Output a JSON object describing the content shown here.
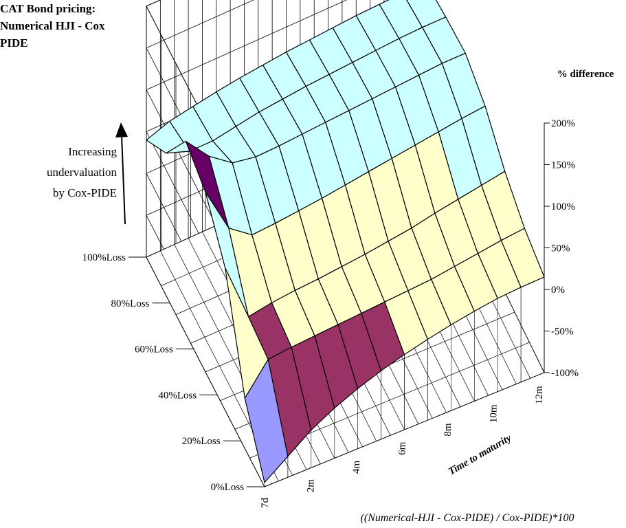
{
  "chart_data": {
    "type": "surface3d",
    "title_lines": [
      "CAT Bond pricing:",
      "Numerical HJI - Cox",
      "PIDE"
    ],
    "zlabel": "% difference",
    "z_ticks": [
      "200%",
      "150%",
      "100%",
      "50%",
      "0%",
      "-50%",
      "-100%"
    ],
    "z_values": [
      200,
      150,
      100,
      50,
      0,
      -50,
      -100
    ],
    "zlim": [
      -100,
      200
    ],
    "x_axis_label": "Time to maturity",
    "x_ticks": [
      "7d",
      "2m",
      "4m",
      "6m",
      "8m",
      "10m",
      "12m"
    ],
    "y_ticks": [
      "0%Loss",
      "20%Loss",
      "40%Loss",
      "60%Loss",
      "80%Loss",
      "100%Loss"
    ],
    "annotation": [
      "Increasing",
      "undervaluation",
      "by Cox-PIDE"
    ],
    "footnote": "((Numerical-HJI - Cox-PIDE) / Cox-PIDE)*100",
    "band_colors": [
      "#9999ff",
      "#993366",
      "#ffffcc",
      "#ccffff",
      "#660066",
      "#ff8080"
    ],
    "band_edges": [
      -100,
      -50,
      0,
      50,
      100,
      150,
      200
    ],
    "grid": true,
    "surface_z": [
      [
        -95,
        -75,
        -55,
        -40,
        -28,
        -18,
        -10,
        -3,
        3,
        8,
        12,
        14,
        15
      ],
      [
        -40,
        -5,
        -2,
        0,
        2,
        4,
        6,
        8,
        10,
        14,
        18,
        22,
        25
      ],
      [
        70,
        0,
        5,
        8,
        10,
        13,
        16,
        20,
        24,
        30,
        35,
        40,
        45
      ],
      [
        115,
        60,
        40,
        42,
        45,
        48,
        52,
        56,
        60,
        64,
        68,
        72,
        75
      ],
      [
        130,
        100,
        80,
        75,
        76,
        78,
        80,
        82,
        84,
        86,
        88,
        90,
        90
      ],
      [
        70,
        60,
        60,
        65,
        70,
        73,
        76,
        78,
        80,
        82,
        84,
        85,
        85
      ],
      [
        40,
        50,
        55,
        60,
        64,
        67,
        70,
        72,
        74,
        76,
        77,
        78,
        78
      ]
    ]
  }
}
